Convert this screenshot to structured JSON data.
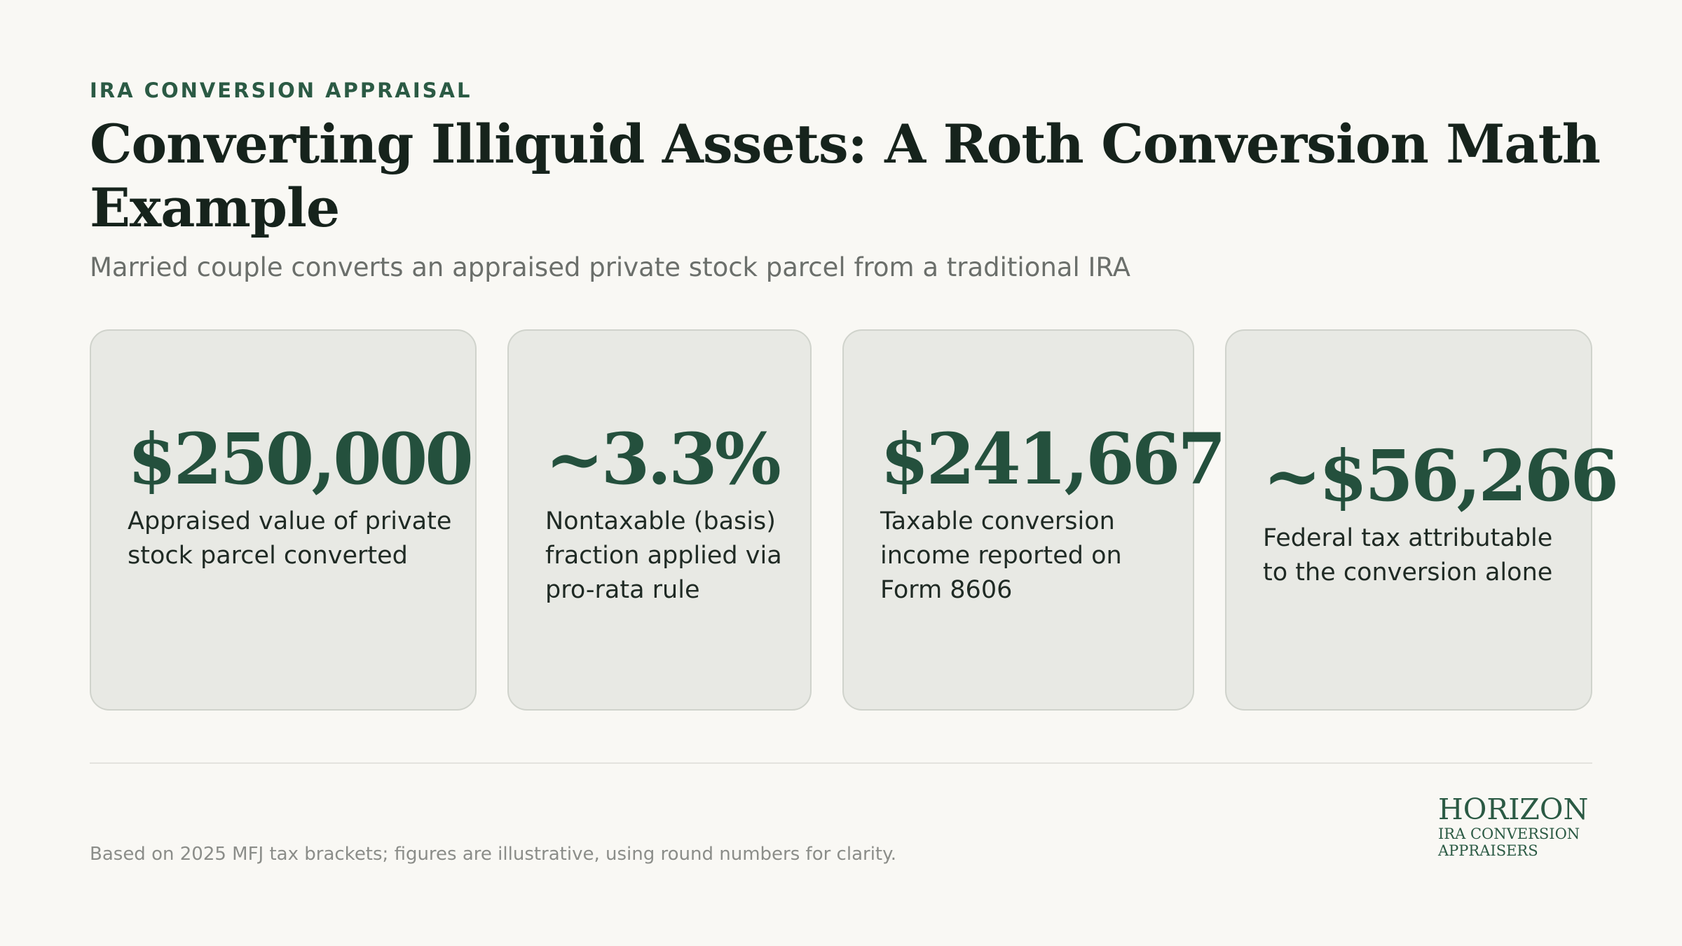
{
  "header": {
    "eyebrow": "IRA CONVERSION APPRAISAL",
    "title": "Converting Illiquid Assets: A Roth Conversion Math Example",
    "subtitle": "Married couple converts an appraised private stock parcel from a traditional IRA"
  },
  "cards": [
    {
      "value": "$250,000",
      "label": "Appraised value of private stock parcel converted"
    },
    {
      "value": "~3.3%",
      "label": "Nontaxable (basis) fraction applied via pro-rata rule"
    },
    {
      "value": "$241,667",
      "label": "Taxable conversion income reported on Form 8606"
    },
    {
      "value": "~$56,266",
      "label": "Federal tax attributable to the conversion alone"
    }
  ],
  "footer": {
    "note": "Based on 2025 MFJ tax brackets; figures are illustrative, using round numbers for clarity.",
    "logo_name": "HORIZON",
    "logo_sub": "IRA CONVERSION APPRAISERS"
  },
  "colors": {
    "accent": "#24503d",
    "background": "#f9f8f4",
    "card_background": "#e8e9e4"
  }
}
